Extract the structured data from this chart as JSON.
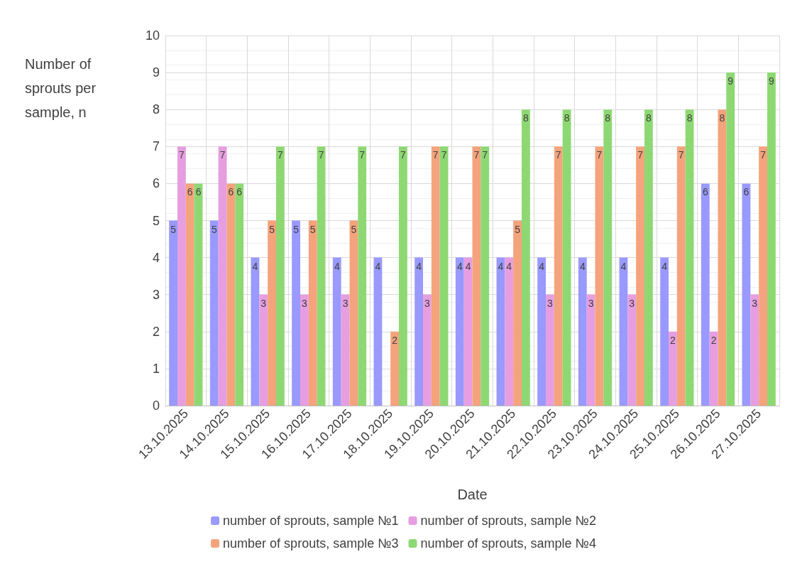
{
  "chart_data": {
    "type": "bar",
    "xlabel": "Date",
    "ylabel": "Number of sprouts per sample, n",
    "categories": [
      "13.10.2025",
      "14.10.2025",
      "15.10.2025",
      "16.10.2025",
      "17.10.2025",
      "18.10.2025",
      "19.10.2025",
      "20.10.2025",
      "21.10.2025",
      "22.10.2025",
      "23.10.2025",
      "24.10.2025",
      "25.10.2025",
      "26.10.2025",
      "27.10.2025"
    ],
    "series": [
      {
        "name": "number of sprouts, sample №1",
        "color": "#9999ff",
        "values": [
          5,
          5,
          4,
          5,
          4,
          4,
          4,
          4,
          4,
          4,
          4,
          4,
          4,
          6,
          6
        ]
      },
      {
        "name": "number of sprouts, sample №2",
        "color": "#e69ee0",
        "values": [
          7,
          7,
          3,
          3,
          3,
          null,
          3,
          4,
          4,
          3,
          3,
          3,
          2,
          2,
          3
        ]
      },
      {
        "name": "number of sprouts, sample №3",
        "color": "#f4a37c",
        "values": [
          6,
          6,
          5,
          5,
          5,
          2,
          7,
          7,
          5,
          7,
          7,
          7,
          7,
          8,
          7
        ]
      },
      {
        "name": "number of sprouts, sample №4",
        "color": "#8ed873",
        "values": [
          6,
          6,
          7,
          7,
          7,
          7,
          7,
          7,
          8,
          8,
          8,
          8,
          8,
          9,
          9
        ]
      }
    ],
    "ylim": [
      0,
      10
    ],
    "yticks": [
      0,
      1,
      2,
      3,
      4,
      5,
      6,
      7,
      8,
      9,
      10
    ],
    "grid": true,
    "legend": "bottom",
    "data_labels": true
  }
}
